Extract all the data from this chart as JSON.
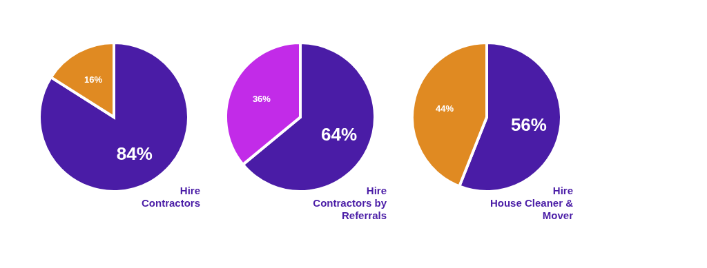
{
  "chart_data": [
    {
      "type": "pie",
      "title": "Hire\nContractors",
      "categories": [
        null,
        null
      ],
      "values": [
        84,
        16
      ],
      "colors": [
        "#4a1ca6",
        "#e08a22"
      ],
      "value_labels": [
        "84%",
        "16%"
      ],
      "legend": false
    },
    {
      "type": "pie",
      "title": "Hire\nContractors by\nReferrals",
      "categories": [
        null,
        null
      ],
      "values": [
        64,
        36
      ],
      "colors": [
        "#4a1ca6",
        "#c22be8"
      ],
      "value_labels": [
        "64%",
        "36%"
      ],
      "legend": false
    },
    {
      "type": "pie",
      "title": "Hire\nHouse Cleaner &\nMover",
      "categories": [
        null,
        null
      ],
      "values": [
        56,
        44
      ],
      "colors": [
        "#4a1ca6",
        "#e08a22"
      ],
      "value_labels": [
        "56%",
        "44%"
      ],
      "legend": false
    }
  ]
}
